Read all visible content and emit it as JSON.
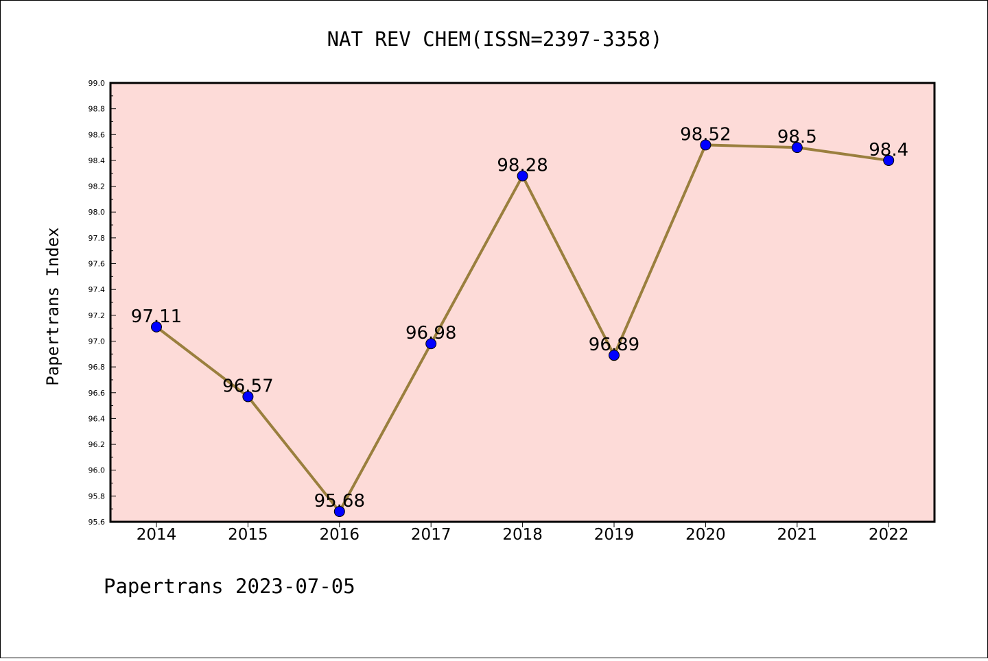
{
  "chart_data": {
    "type": "line",
    "title": "NAT REV CHEM(ISSN=2397-3358)",
    "ylabel": "Papertrans Index",
    "xlabel": "",
    "categories": [
      "2014",
      "2015",
      "2016",
      "2017",
      "2018",
      "2019",
      "2020",
      "2021",
      "2022"
    ],
    "series": [
      {
        "values": [
          97.11,
          96.57,
          95.68,
          96.98,
          98.28,
          96.89,
          98.52,
          98.5,
          98.4
        ]
      }
    ],
    "data_labels": [
      "97.11",
      "96.57",
      "95.68",
      "96.98",
      "98.28",
      "96.89",
      "98.52",
      "98.5",
      "98.4"
    ],
    "ylim": [
      95.6,
      99.0
    ],
    "ytick_labels": [
      "95.6",
      "95.8",
      "96.0",
      "96.2",
      "96.4",
      "96.6",
      "96.8",
      "97.0",
      "97.2",
      "97.4",
      "97.6",
      "97.8",
      "98.0",
      "98.2",
      "98.4",
      "98.6",
      "98.8",
      "99.0"
    ],
    "grid": false,
    "legend": "none",
    "colors": {
      "plot_background": "#fddbd8",
      "line": "#9a7f3e",
      "marker": "#0000ff"
    }
  },
  "footer": "Papertrans 2023-07-05"
}
